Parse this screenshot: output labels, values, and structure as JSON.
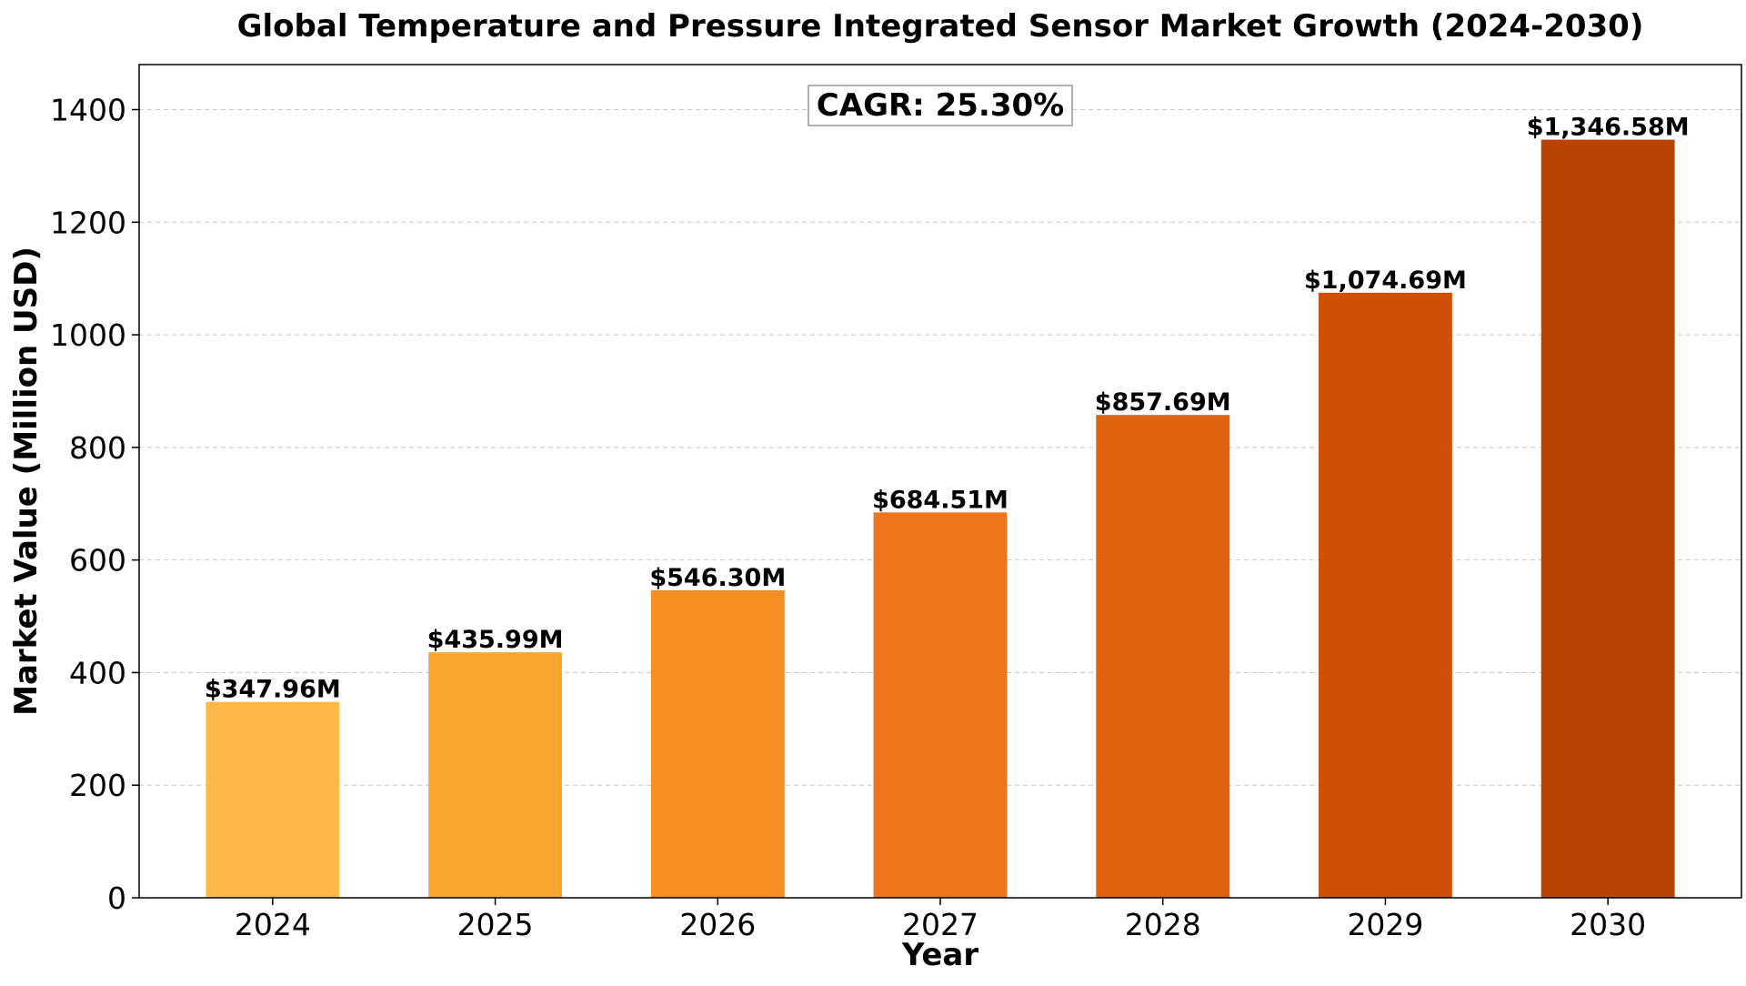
{
  "chart_data": {
    "type": "bar",
    "title": "Global Temperature and Pressure Integrated Sensor Market Growth (2024-2030)",
    "xlabel": "Year",
    "ylabel": "Market Value (Million USD)",
    "categories": [
      "2024",
      "2025",
      "2026",
      "2027",
      "2028",
      "2029",
      "2030"
    ],
    "values": [
      347.96,
      435.99,
      546.3,
      684.51,
      857.69,
      1074.69,
      1346.58
    ],
    "data_labels": [
      "$347.96M",
      "$435.99M",
      "$546.30M",
      "$684.51M",
      "$857.69M",
      "$1,074.69M",
      "$1,346.58M"
    ],
    "bar_colors": [
      "#fdb847",
      "#fba531",
      "#f78e24",
      "#ee751b",
      "#e06310",
      "#cf5004",
      "#b94304"
    ],
    "ylim": [
      0,
      1480
    ],
    "yticks": [
      0,
      200,
      400,
      600,
      800,
      1000,
      1200,
      1400
    ],
    "grid": "y-dashed",
    "annotation": "CAGR: 25.30%"
  }
}
